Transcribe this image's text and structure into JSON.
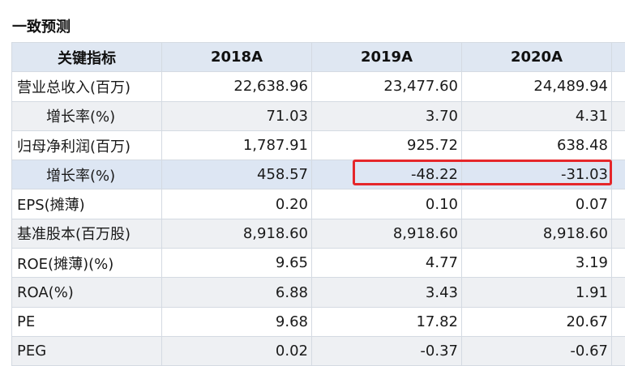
{
  "section_title": "一致预测",
  "table": {
    "headers": [
      "关键指标",
      "2018A",
      "2019A",
      "2020A"
    ],
    "rows": [
      {
        "label": "营业总收入(百万)",
        "indent": false,
        "values": [
          "22,638.96",
          "23,477.60",
          "24,489.94"
        ]
      },
      {
        "label": "增长率(%)",
        "indent": true,
        "values": [
          "71.03",
          "3.70",
          "4.31"
        ]
      },
      {
        "label": "归母净利润(百万)",
        "indent": false,
        "values": [
          "1,787.91",
          "925.72",
          "638.48"
        ]
      },
      {
        "label": "增长率(%)",
        "indent": true,
        "values": [
          "458.57",
          "-48.22",
          "-31.03"
        ]
      },
      {
        "label": "EPS(摊薄)",
        "indent": false,
        "values": [
          "0.20",
          "0.10",
          "0.07"
        ]
      },
      {
        "label": "基准股本(百万股)",
        "indent": false,
        "values": [
          "8,918.60",
          "8,918.60",
          "8,918.60"
        ]
      },
      {
        "label": "ROE(摊薄)(%)",
        "indent": false,
        "values": [
          "9.65",
          "4.77",
          "3.19"
        ]
      },
      {
        "label": "ROA(%)",
        "indent": false,
        "values": [
          "6.88",
          "3.43",
          "1.91"
        ]
      },
      {
        "label": "PE",
        "indent": false,
        "values": [
          "9.68",
          "17.82",
          "20.67"
        ]
      },
      {
        "label": "PEG",
        "indent": false,
        "values": [
          "0.02",
          "-0.37",
          "-0.67"
        ]
      }
    ],
    "highlighted_row": 3,
    "highlight_color": "#e5262a"
  }
}
